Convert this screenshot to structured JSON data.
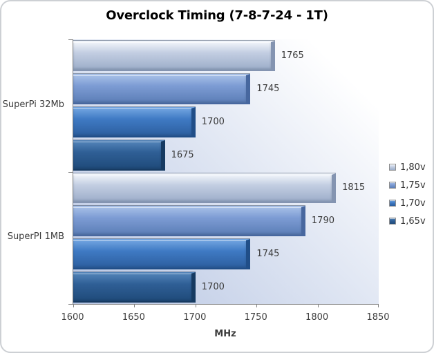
{
  "chart_data": {
    "type": "bar",
    "orientation": "horizontal",
    "title": "Overclock Timing (7-8-7-24 - 1T)",
    "xlabel": "MHz",
    "xlim": [
      1600,
      1850
    ],
    "xticks": [
      1600,
      1650,
      1700,
      1750,
      1800,
      1850
    ],
    "categories": [
      "SuperPi 32Mb",
      "SuperPI 1MB"
    ],
    "series": [
      {
        "name": "1,80v",
        "values": [
          1765,
          1815
        ],
        "colors": {
          "light": "#f0f4fa",
          "mid": "#c3cee2",
          "dark": "#9cadc9",
          "edge": "#8494b1"
        }
      },
      {
        "name": "1,75v",
        "values": [
          1745,
          1790
        ],
        "colors": {
          "light": "#a6bfe7",
          "mid": "#7d9cd4",
          "dark": "#5b7db6",
          "edge": "#47679f"
        }
      },
      {
        "name": "1,70v",
        "values": [
          1700,
          1745
        ],
        "colors": {
          "light": "#71a4e0",
          "mid": "#3f7ac4",
          "dark": "#2c5e9e",
          "edge": "#204e88"
        }
      },
      {
        "name": "1,65v",
        "values": [
          1675,
          1700
        ],
        "colors": {
          "light": "#5283b8",
          "mid": "#2f5f96",
          "dark": "#1f4a79",
          "edge": "#163a61"
        }
      }
    ],
    "data_labels": true,
    "grid": false,
    "legend_position": "right",
    "plot_background": {
      "from": "#b7c5e2",
      "to": "#ffffff"
    },
    "axis_color": "#808080",
    "text_color": "#3a3a3a"
  }
}
